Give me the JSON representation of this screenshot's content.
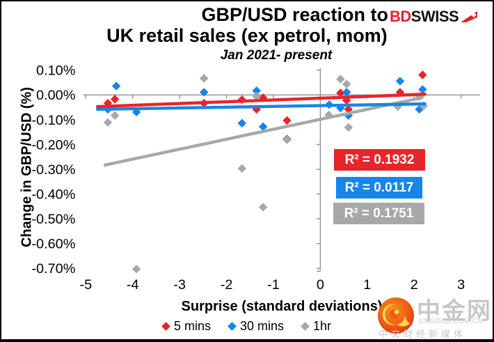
{
  "header": {
    "title_line1": "GBP/USD reaction to",
    "title_line2": "UK retail sales (ex petrol, mom)",
    "subtitle": "Jan 2021- present",
    "logo_bd": "BD",
    "logo_swiss": "SWISS"
  },
  "colors": {
    "red": "#E8252A",
    "blue": "#1785EA",
    "gray": "#A8A8A8",
    "axis": "#8F8F8F",
    "logo_red": "#E8212E",
    "black": "#111111",
    "watermark": "#C6C8C7"
  },
  "chart_data": {
    "type": "scatter",
    "title": "GBP/USD reaction to UK retail sales (ex petrol, mom)",
    "subtitle": "Jan 2021- present",
    "xlabel": "Surprise (standard deviations)",
    "ylabel": "Change in GBP/USD (%)",
    "xlim": [
      -5.06,
      3.41
    ],
    "ylim": [
      -0.733,
      0.142
    ],
    "y_unit": "percent",
    "grid": false,
    "legend_position": "bottom",
    "x_ticks": [
      -5,
      -4,
      -3,
      -2,
      -1,
      0,
      1,
      2,
      3
    ],
    "y_ticks": [
      0.1,
      0.0,
      -0.1,
      -0.2,
      -0.3,
      -0.4,
      -0.5,
      -0.6,
      -0.7
    ],
    "y_tick_labels": [
      "0.10%",
      "0.00%",
      "-0.10%",
      "-0.20%",
      "-0.30%",
      "-0.40%",
      "-0.50%",
      "-0.60%",
      "-0.70%"
    ],
    "series": [
      {
        "name": "5 mins",
        "color": "red",
        "r2": 0.1932,
        "r2_label": "R² = 0.1932",
        "points": [
          [
            -4.53,
            -0.033
          ],
          [
            -4.38,
            -0.017
          ],
          [
            -2.48,
            -0.033
          ],
          [
            -1.67,
            -0.019
          ],
          [
            -1.36,
            -0.058
          ],
          [
            -1.22,
            -0.011
          ],
          [
            -0.71,
            -0.103
          ],
          [
            0.43,
            0.008
          ],
          [
            0.56,
            -0.022
          ],
          [
            0.6,
            -0.058
          ],
          [
            1.7,
            0.011
          ],
          [
            2.18,
            0.081
          ]
        ],
        "trend": {
          "x1": -4.75,
          "y1": -0.047,
          "x2": 2.23,
          "y2": 0.003
        }
      },
      {
        "name": "30 mins",
        "color": "blue",
        "r2": 0.0117,
        "r2_label": "R² = 0.0117",
        "points": [
          [
            -4.53,
            -0.058
          ],
          [
            -4.35,
            0.036
          ],
          [
            -3.92,
            -0.069
          ],
          [
            -2.48,
            0.011
          ],
          [
            -1.67,
            -0.114
          ],
          [
            -1.36,
            0.017
          ],
          [
            -1.22,
            -0.128
          ],
          [
            -0.71,
            -0.178
          ],
          [
            0.19,
            -0.039
          ],
          [
            0.43,
            -0.053
          ],
          [
            0.56,
            0.011
          ],
          [
            0.6,
            -0.083
          ],
          [
            1.7,
            0.056
          ],
          [
            2.18,
            0.022
          ],
          [
            2.11,
            -0.058
          ]
        ],
        "trend": {
          "x1": -4.75,
          "y1": -0.058,
          "x2": 2.23,
          "y2": -0.036
        }
      },
      {
        "name": "1hr",
        "color": "gray",
        "r2": 0.1751,
        "r2_label": "R² = 0.1751",
        "points": [
          [
            -4.53,
            -0.111
          ],
          [
            -4.38,
            -0.083
          ],
          [
            -3.92,
            -0.703
          ],
          [
            -2.48,
            0.067
          ],
          [
            -1.67,
            -0.297
          ],
          [
            -1.36,
            -0.006
          ],
          [
            -1.22,
            -0.453
          ],
          [
            -0.71,
            -0.181
          ],
          [
            0.18,
            -0.081
          ],
          [
            0.43,
            0.064
          ],
          [
            0.56,
            0.044
          ],
          [
            0.6,
            -0.131
          ],
          [
            1.65,
            -0.047
          ],
          [
            2.12,
            -0.006
          ],
          [
            2.2,
            -0.044
          ]
        ],
        "trend": {
          "x1": -4.59,
          "y1": -0.283,
          "x2": 2.17,
          "y2": -0.011
        }
      }
    ]
  },
  "watermark": {
    "brand": "中金网",
    "domain": "CNGOLD.COM.CN",
    "tagline": "中文财经新媒体"
  }
}
